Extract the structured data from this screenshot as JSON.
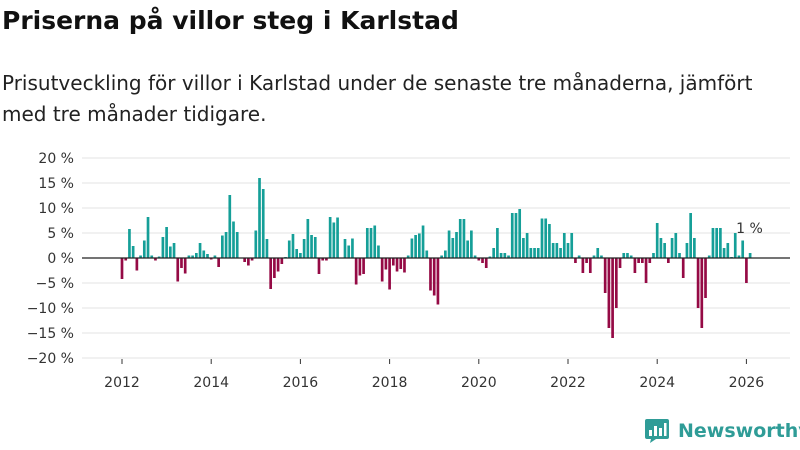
{
  "title": "Priserna på villor steg i Karlstad",
  "subtitle": "Prisutveckling för villor i Karlstad under de senaste tre månaderna, jämfört med tre månader tidigare.",
  "brand": "Newsworthy",
  "colors": {
    "positive": "#159f98",
    "negative": "#950a45",
    "grid": "#e3e3e3",
    "zero": "#222222"
  },
  "chart_data": {
    "type": "bar",
    "title": "Priserna på villor steg i Karlstad",
    "xlabel": "",
    "ylabel": "",
    "ylim": [
      -20,
      20
    ],
    "y_ticks": [
      20,
      15,
      10,
      5,
      0,
      -5,
      -10,
      -15,
      -20
    ],
    "y_tick_labels": [
      "20 %",
      "15 %",
      "10 %",
      "5 %",
      "0 %",
      "−5 %",
      "−10 %",
      "−15 %",
      "−20 %"
    ],
    "x_ticks": [
      2012,
      2014,
      2016,
      2018,
      2020,
      2022,
      2024,
      2026
    ],
    "x_tick_labels": [
      "2012",
      "2014",
      "2016",
      "2018",
      "2020",
      "2022",
      "2024",
      "2026"
    ],
    "start": {
      "year": 2012,
      "month": 1
    },
    "annotation": "1 %",
    "values": [
      -4.2,
      -0.5,
      5.8,
      2.4,
      -2.5,
      0.5,
      3.5,
      8.2,
      0.5,
      -0.5,
      0.3,
      4.2,
      6.2,
      2.3,
      3.0,
      -4.7,
      -2.0,
      -3.1,
      0.5,
      0.5,
      1.0,
      3.0,
      1.5,
      0.8,
      -0.3,
      0.5,
      -1.8,
      4.5,
      5.2,
      12.6,
      7.3,
      5.2,
      0.1,
      -0.8,
      -1.5,
      -0.5,
      5.5,
      16.0,
      13.8,
      3.8,
      -6.2,
      -4.0,
      -2.7,
      -1.2,
      0.2,
      3.5,
      4.8,
      1.8,
      1.0,
      3.8,
      7.8,
      4.6,
      4.2,
      -3.2,
      -0.5,
      -0.5,
      8.2,
      7.1,
      8.1,
      0.1,
      3.8,
      2.5,
      3.9,
      -5.3,
      -3.5,
      -3.2,
      6.0,
      6.0,
      6.5,
      2.5,
      -4.7,
      -2.3,
      -6.3,
      -1.5,
      -2.7,
      -2.2,
      -2.9,
      0.5,
      3.9,
      4.6,
      4.9,
      6.5,
      1.5,
      -6.5,
      -7.5,
      -9.3,
      0.5,
      1.5,
      5.5,
      4.0,
      5.2,
      7.8,
      7.8,
      3.5,
      5.5,
      0.5,
      -0.5,
      -1.0,
      -2.0,
      0.3,
      2.0,
      6.0,
      1.0,
      1.0,
      0.5,
      9.0,
      9.0,
      9.8,
      4.0,
      5.0,
      2.0,
      2.0,
      2.0,
      7.9,
      7.9,
      6.8,
      3.0,
      3.0,
      2.0,
      5.0,
      3.0,
      5.0,
      -1.0,
      0.5,
      -3.0,
      -1.0,
      -3.0,
      0.5,
      2.0,
      0.5,
      -7.0,
      -14.0,
      -16.0,
      -10.0,
      -2.0,
      1.0,
      1.0,
      0.5,
      -3.0,
      -1.0,
      -1.0,
      -5.0,
      -1.0,
      1.0,
      7.0,
      4.0,
      3.0,
      -1.0,
      4.0,
      5.0,
      1.0,
      -4.0,
      3.0,
      9.0,
      4.0,
      -10.0,
      -14.0,
      -8.0,
      0.5,
      6.0,
      6.0,
      6.0,
      2.0,
      3.0,
      0.2,
      5.0,
      0.5,
      3.5,
      -5.0,
      1.0
    ]
  }
}
